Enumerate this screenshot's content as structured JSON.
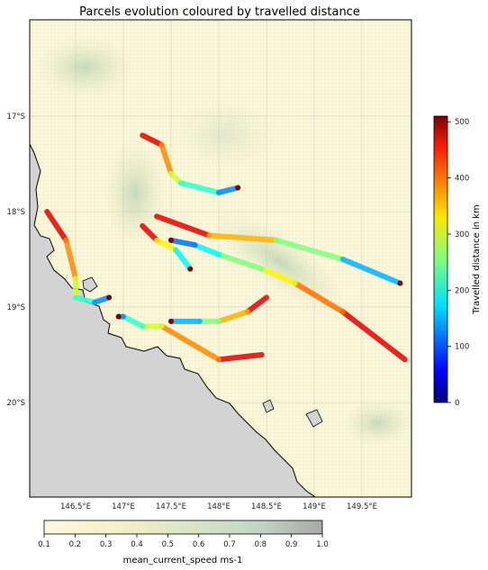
{
  "title": "Parcels evolution coloured by travelled distance",
  "map": {
    "lon_ticks": [
      "146.5°E",
      "147°E",
      "147.5°E",
      "148°E",
      "148.5°E",
      "149°E",
      "149.5°E"
    ],
    "lat_ticks": [
      "17°S",
      "18°S",
      "19°S",
      "20°S"
    ],
    "land_color": "#d3d3d3",
    "sea_color": "#fcf8de"
  },
  "chart_data": {
    "type": "scatter",
    "x_axis": "longitude",
    "y_axis": "latitude",
    "series_color_variable": "Travelled distance in km",
    "tracks": [
      {
        "name": "track-1",
        "points": [
          [
            149.95,
            -19.55
          ],
          [
            149.3,
            -19.05
          ],
          [
            148.8,
            -18.75
          ],
          [
            148.45,
            -18.6
          ],
          [
            148.0,
            -18.45
          ],
          [
            147.75,
            -18.35
          ],
          [
            147.5,
            -18.3
          ]
        ]
      },
      {
        "name": "track-2",
        "points": [
          [
            148.45,
            -19.5
          ],
          [
            148.0,
            -19.55
          ],
          [
            147.4,
            -19.2
          ],
          [
            147.2,
            -19.2
          ],
          [
            147.0,
            -19.1
          ],
          [
            146.95,
            -19.1
          ]
        ]
      },
      {
        "name": "track-3",
        "points": [
          [
            146.2,
            -18.0
          ],
          [
            146.4,
            -18.3
          ],
          [
            146.5,
            -18.7
          ],
          [
            146.5,
            -18.9
          ],
          [
            146.7,
            -18.95
          ],
          [
            146.85,
            -18.9
          ]
        ]
      },
      {
        "name": "track-4",
        "points": [
          [
            148.5,
            -18.9
          ],
          [
            148.3,
            -19.05
          ],
          [
            148.0,
            -19.15
          ],
          [
            147.8,
            -19.15
          ],
          [
            147.5,
            -19.15
          ]
        ]
      },
      {
        "name": "track-5",
        "points": [
          [
            147.2,
            -17.2
          ],
          [
            147.4,
            -17.3
          ],
          [
            147.5,
            -17.6
          ],
          [
            147.6,
            -17.7
          ],
          [
            148.0,
            -17.8
          ],
          [
            148.2,
            -17.75
          ]
        ]
      },
      {
        "name": "track-6",
        "points": [
          [
            147.35,
            -18.05
          ],
          [
            147.9,
            -18.25
          ],
          [
            148.6,
            -18.3
          ],
          [
            149.3,
            -18.5
          ],
          [
            149.9,
            -18.75
          ]
        ]
      },
      {
        "name": "track-7",
        "points": [
          [
            147.2,
            -18.15
          ],
          [
            147.35,
            -18.3
          ],
          [
            147.55,
            -18.4
          ],
          [
            147.7,
            -18.6
          ]
        ]
      }
    ],
    "colorbar": {
      "label": "Travelled distance in km",
      "range": [
        0,
        510
      ],
      "ticks": [
        "0",
        "100",
        "200",
        "300",
        "400",
        "500"
      ]
    },
    "background_colorbar": {
      "label": "mean_current_speed ms-1",
      "range": [
        0.1,
        1.0
      ],
      "ticks": [
        "0.1",
        "0.2",
        "0.3",
        "0.4",
        "0.5",
        "0.6",
        "0.7",
        "0.8",
        "0.9",
        "1.0"
      ]
    }
  }
}
